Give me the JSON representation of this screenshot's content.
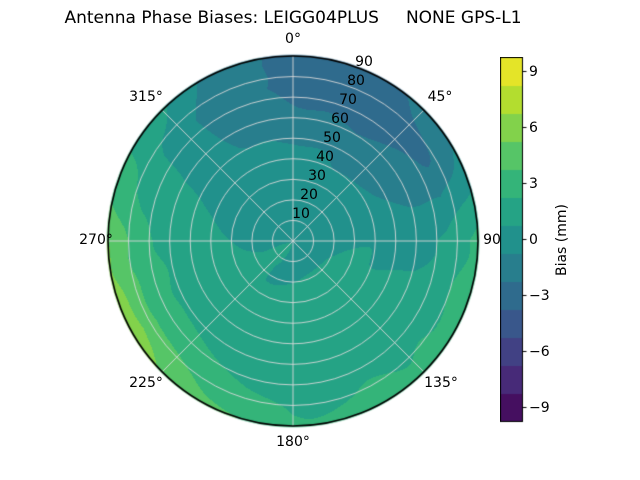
{
  "title": "Antenna Phase Biases: LEIGG04PLUS     NONE GPS-L1",
  "chart_data": {
    "type": "heatmap",
    "projection": "polar",
    "title": "Antenna Phase Biases: LEIGG04PLUS     NONE GPS-L1",
    "angular_unit": "degrees",
    "angular_direction": "clockwise-from-north",
    "angular_ticks": [
      {
        "angle_deg": 0,
        "label": "0°"
      },
      {
        "angle_deg": 45,
        "label": "45°"
      },
      {
        "angle_deg": 90,
        "label": "90"
      },
      {
        "angle_deg": 135,
        "label": "135°"
      },
      {
        "angle_deg": 180,
        "label": "180°"
      },
      {
        "angle_deg": 225,
        "label": "225°"
      },
      {
        "angle_deg": 270,
        "label": "270°"
      },
      {
        "angle_deg": 315,
        "label": "315°"
      }
    ],
    "radial_ticks": [
      {
        "r": 10,
        "label": "10"
      },
      {
        "r": 20,
        "label": "20"
      },
      {
        "r": 30,
        "label": "30"
      },
      {
        "r": 40,
        "label": "40"
      },
      {
        "r": 50,
        "label": "50"
      },
      {
        "r": 60,
        "label": "60"
      },
      {
        "r": 70,
        "label": "70"
      },
      {
        "r": 80,
        "label": "80"
      },
      {
        "r": 90,
        "label": "90"
      }
    ],
    "radial_range": [
      0,
      90
    ],
    "colorbar": {
      "label": "Bias (mm)",
      "ticks": [
        {
          "value": 9,
          "label": "9"
        },
        {
          "value": 6,
          "label": "6"
        },
        {
          "value": 3,
          "label": "3"
        },
        {
          "value": 0,
          "label": "0"
        },
        {
          "value": -3,
          "label": "−3"
        },
        {
          "value": -6,
          "label": "−6"
        },
        {
          "value": -9,
          "label": "−9"
        }
      ],
      "vmin": -9.75,
      "vmax": 9.75,
      "level_step": 1.5,
      "colormap": "viridis",
      "colormap_stops": [
        [
          0,
          "#440154"
        ],
        [
          0.125,
          "#472d7b"
        ],
        [
          0.25,
          "#3b528b"
        ],
        [
          0.375,
          "#2c728e"
        ],
        [
          0.5,
          "#21918c"
        ],
        [
          0.625,
          "#28ae80"
        ],
        [
          0.75,
          "#5ec962"
        ],
        [
          0.875,
          "#addc30"
        ],
        [
          1,
          "#fde725"
        ]
      ]
    },
    "grid": {
      "azimuths_deg": [
        0,
        30,
        60,
        90,
        120,
        150,
        180,
        210,
        240,
        270,
        300,
        330,
        360
      ],
      "zenith_deg": [
        0,
        15,
        30,
        45,
        60,
        75,
        90
      ],
      "bias_mm": [
        [
          0.5,
          0.3,
          0.0,
          -0.6,
          -1.6,
          -2.6,
          -2.6
        ],
        [
          0.5,
          0.2,
          -0.3,
          -1.0,
          -2.2,
          -3.2,
          -2.8
        ],
        [
          0.5,
          0.3,
          0.0,
          -0.6,
          -1.6,
          -2.4,
          -0.8
        ],
        [
          0.5,
          0.5,
          0.4,
          0.4,
          0.4,
          1.0,
          2.6
        ],
        [
          0.5,
          0.6,
          0.8,
          1.0,
          1.4,
          2.0,
          3.2
        ],
        [
          0.5,
          0.6,
          0.8,
          1.0,
          1.4,
          1.9,
          2.8
        ],
        [
          0.5,
          0.6,
          0.8,
          1.0,
          1.3,
          1.8,
          2.6
        ],
        [
          0.5,
          0.7,
          1.0,
          1.3,
          1.8,
          2.6,
          4.2
        ],
        [
          0.5,
          0.7,
          1.1,
          1.6,
          2.2,
          3.6,
          6.4
        ],
        [
          0.5,
          0.6,
          0.9,
          1.3,
          1.9,
          3.0,
          5.2
        ],
        [
          0.5,
          0.4,
          0.3,
          0.3,
          0.5,
          1.0,
          2.2
        ],
        [
          0.5,
          0.3,
          0.0,
          -0.4,
          -1.0,
          -1.6,
          -0.8
        ],
        [
          0.5,
          0.3,
          0.0,
          -0.6,
          -1.6,
          -2.6,
          -2.6
        ]
      ]
    }
  }
}
